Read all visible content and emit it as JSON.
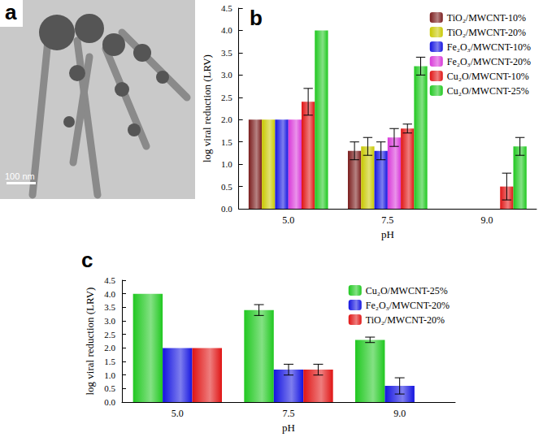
{
  "image_panel": {
    "label": "a",
    "scale_bar": "100 nm"
  },
  "chart_data": [
    {
      "type": "bar",
      "title": "b",
      "x_label": "pH",
      "y_label": "log viral reduction (LRV)",
      "categories": [
        "5.0",
        "7.5",
        "9.0"
      ],
      "ylim": [
        0,
        4.5
      ],
      "yticks": [
        {
          "value": 0,
          "label": "0.0"
        },
        0.5,
        {
          "value": 1,
          "label": "1.0"
        },
        1.5,
        {
          "value": 2,
          "label": "2.0"
        },
        2.5,
        {
          "value": 3,
          "label": "3.0"
        },
        3.5,
        {
          "value": 4,
          "label": "4.0"
        },
        4.5
      ],
      "grid": false,
      "legend": "upper right",
      "series": [
        {
          "name": "TiO₂/MWCNT-10%",
          "color": "#7a1c1c",
          "values": [
            2.0,
            1.3,
            null
          ],
          "errors": [
            null,
            0.2,
            null
          ]
        },
        {
          "name": "TiO₂/MWCNT-20%",
          "color": "#c8c800",
          "values": [
            2.0,
            1.4,
            null
          ],
          "errors": [
            null,
            0.2,
            null
          ]
        },
        {
          "name": "Fe₂O₃/MWCNT-10%",
          "color": "#1414e0",
          "values": [
            2.0,
            1.3,
            null
          ],
          "errors": [
            null,
            0.2,
            null
          ]
        },
        {
          "name": "Fe₂O₃/MWCNT-20%",
          "color": "#d838d8",
          "values": [
            2.0,
            1.6,
            null
          ],
          "errors": [
            null,
            0.2,
            null
          ]
        },
        {
          "name": "Cu₂O/MWCNT-10%",
          "color": "#e01414",
          "values": [
            2.4,
            1.8,
            0.5
          ],
          "errors": [
            0.3,
            0.1,
            0.3
          ]
        },
        {
          "name": "Cu₂O/MWCNT-25%",
          "color": "#20c820",
          "values": [
            4.0,
            3.2,
            1.4
          ],
          "errors": [
            null,
            0.2,
            0.2
          ]
        }
      ]
    },
    {
      "type": "bar",
      "title": "c",
      "x_label": "pH",
      "y_label": "log viral reduction (LRV)",
      "categories": [
        "5.0",
        "7.5",
        "9.0"
      ],
      "ylim": [
        0,
        4.5
      ],
      "yticks": [
        {
          "value": 0,
          "label": "0.0"
        },
        0.5,
        {
          "value": 1,
          "label": "1.0"
        },
        1.5,
        {
          "value": 2,
          "label": "2.0"
        },
        2.5,
        {
          "value": 3,
          "label": "3.0"
        },
        3.5,
        {
          "value": 4,
          "label": "4.0"
        },
        4.5
      ],
      "grid": false,
      "legend": "upper right",
      "series": [
        {
          "name": "Cu₂O/MWCNT-25%",
          "color": "#20c820",
          "values": [
            4.0,
            3.4,
            2.3
          ],
          "errors": [
            null,
            0.2,
            0.1
          ]
        },
        {
          "name": "Fe₂O₃/MWCNT-20%",
          "color": "#1414e0",
          "values": [
            2.0,
            1.2,
            0.6
          ],
          "errors": [
            null,
            0.2,
            0.3
          ]
        },
        {
          "name": "TiO₂/MWCNT-20%",
          "color": "#e01414",
          "values": [
            2.0,
            1.2,
            null
          ],
          "errors": [
            null,
            0.2,
            null
          ]
        }
      ]
    }
  ]
}
